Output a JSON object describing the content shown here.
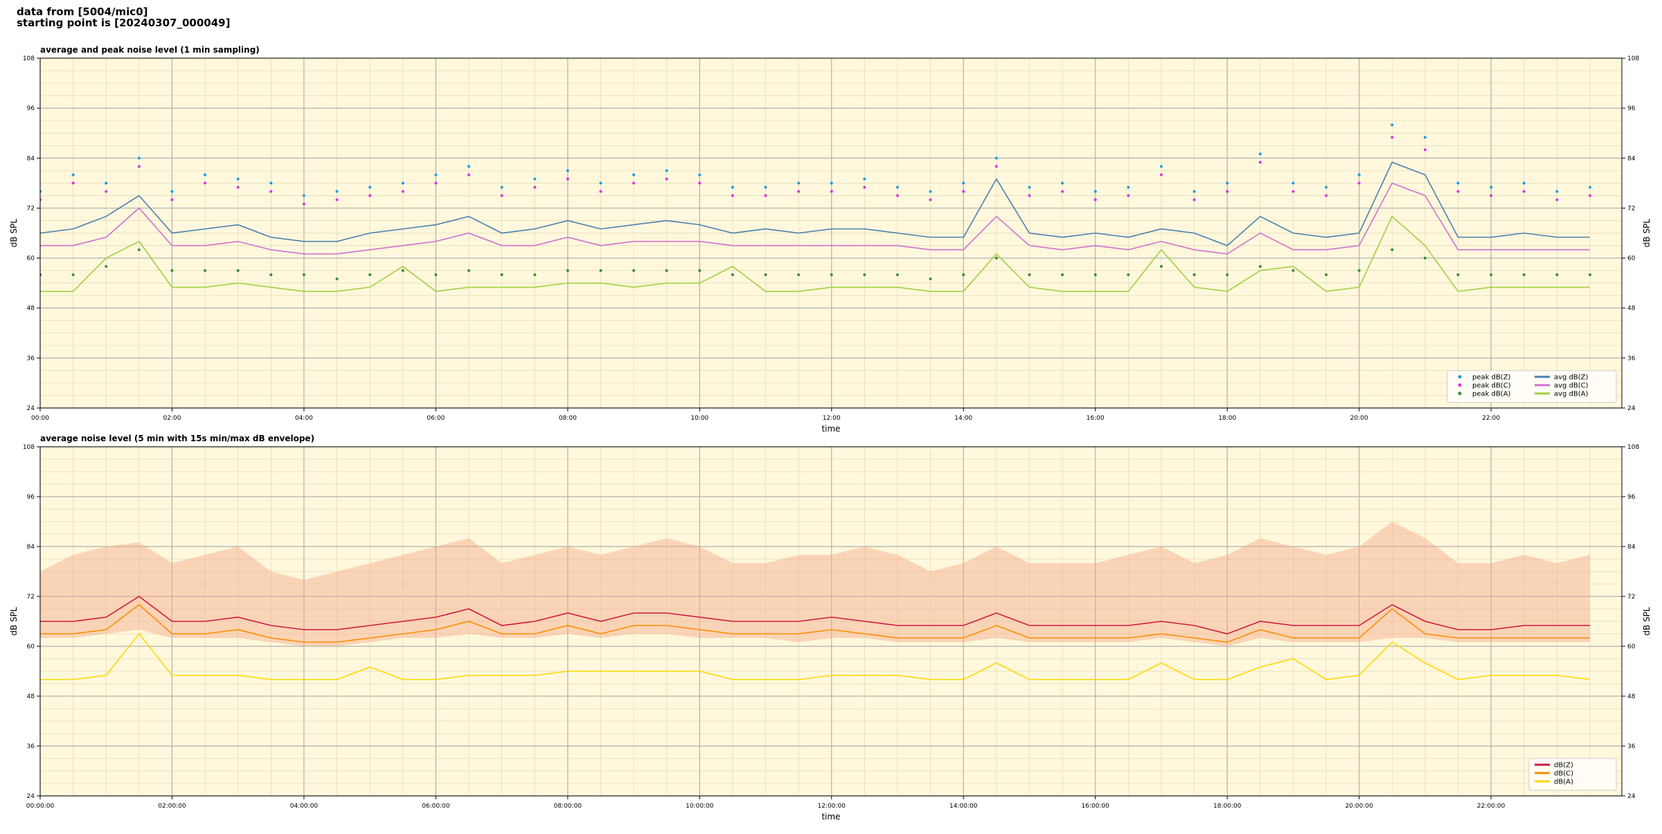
{
  "header": {
    "lines": [
      "data from [5004/mic0]",
      "starting point is [20240307_000049]"
    ]
  },
  "chart_data": [
    {
      "type": "line",
      "title": "average and peak noise level (1 min sampling)",
      "xlabel": "time",
      "ylabel": "dB SPL",
      "y2label": "dB SPL",
      "x": [
        "00:00",
        "00:30",
        "01:00",
        "01:30",
        "02:00",
        "02:30",
        "03:00",
        "03:30",
        "04:00",
        "04:30",
        "05:00",
        "05:30",
        "06:00",
        "06:30",
        "07:00",
        "07:30",
        "08:00",
        "08:30",
        "09:00",
        "09:30",
        "10:00",
        "10:30",
        "11:00",
        "11:30",
        "12:00",
        "12:30",
        "13:00",
        "13:30",
        "14:00",
        "14:30",
        "15:00",
        "15:30",
        "16:00",
        "16:30",
        "17:00",
        "17:30",
        "18:00",
        "18:30",
        "19:00",
        "19:30",
        "20:00",
        "20:30",
        "21:00",
        "21:30",
        "22:00",
        "22:30",
        "23:00",
        "23:30"
      ],
      "xlim": [
        "00:00",
        "23:59"
      ],
      "xticks": [
        "00:00",
        "02:00",
        "04:00",
        "06:00",
        "08:00",
        "10:00",
        "12:00",
        "14:00",
        "16:00",
        "18:00",
        "20:00",
        "22:00"
      ],
      "ylim": [
        24,
        108
      ],
      "yticks": [
        24,
        36,
        48,
        60,
        72,
        84,
        96,
        108
      ],
      "y2lim": [
        24,
        108
      ],
      "y2ticks": [
        24,
        36,
        48,
        60,
        72,
        84,
        96,
        108
      ],
      "grid": true,
      "legend": "lower right",
      "background": "#fff8dc",
      "series": [
        {
          "name": "peak dB(Z)",
          "kind": "scatter",
          "color": "#1f9be0",
          "values": [
            76,
            80,
            78,
            84,
            76,
            80,
            79,
            78,
            75,
            76,
            77,
            78,
            80,
            82,
            77,
            79,
            81,
            78,
            80,
            81,
            80,
            77,
            77,
            78,
            78,
            79,
            77,
            76,
            78,
            84,
            77,
            78,
            76,
            77,
            82,
            76,
            78,
            85,
            78,
            77,
            80,
            92,
            89,
            78,
            77,
            78,
            76,
            77
          ]
        },
        {
          "name": "peak dB(C)",
          "kind": "scatter",
          "color": "#e030e0",
          "values": [
            74,
            78,
            76,
            82,
            74,
            78,
            77,
            76,
            73,
            74,
            75,
            76,
            78,
            80,
            75,
            77,
            79,
            76,
            78,
            79,
            78,
            75,
            75,
            76,
            76,
            77,
            75,
            74,
            76,
            82,
            75,
            76,
            74,
            75,
            80,
            74,
            76,
            83,
            76,
            75,
            78,
            89,
            86,
            76,
            75,
            76,
            74,
            75
          ]
        },
        {
          "name": "peak dB(A)",
          "kind": "scatter",
          "color": "#3a8a3a",
          "values": [
            56,
            56,
            58,
            62,
            57,
            57,
            57,
            56,
            56,
            55,
            56,
            57,
            56,
            57,
            56,
            56,
            57,
            57,
            57,
            57,
            57,
            56,
            56,
            56,
            56,
            56,
            56,
            55,
            56,
            60,
            56,
            56,
            56,
            56,
            58,
            56,
            56,
            58,
            57,
            56,
            57,
            62,
            60,
            56,
            56,
            56,
            56,
            56
          ]
        },
        {
          "name": "avg dB(Z)",
          "kind": "line",
          "color": "#4a7fb0",
          "values": [
            66,
            67,
            70,
            75,
            66,
            67,
            68,
            65,
            64,
            64,
            66,
            67,
            68,
            70,
            66,
            67,
            69,
            67,
            68,
            69,
            68,
            66,
            67,
            66,
            67,
            67,
            66,
            65,
            65,
            79,
            66,
            65,
            66,
            65,
            67,
            66,
            63,
            70,
            66,
            65,
            66,
            83,
            80,
            65,
            65,
            66,
            65,
            65
          ]
        },
        {
          "name": "avg dB(C)",
          "kind": "line",
          "color": "#d070d0",
          "values": [
            63,
            63,
            65,
            72,
            63,
            63,
            64,
            62,
            61,
            61,
            62,
            63,
            64,
            66,
            63,
            63,
            65,
            63,
            64,
            64,
            64,
            63,
            63,
            63,
            63,
            63,
            63,
            62,
            62,
            70,
            63,
            62,
            63,
            62,
            64,
            62,
            61,
            66,
            62,
            62,
            63,
            78,
            75,
            62,
            62,
            62,
            62,
            62
          ]
        },
        {
          "name": "avg dB(A)",
          "kind": "line",
          "color": "#a0d040",
          "values": [
            52,
            52,
            60,
            64,
            53,
            53,
            54,
            53,
            52,
            52,
            53,
            58,
            52,
            53,
            53,
            53,
            54,
            54,
            53,
            54,
            54,
            58,
            52,
            52,
            53,
            53,
            53,
            52,
            52,
            61,
            53,
            52,
            52,
            52,
            62,
            53,
            52,
            57,
            58,
            52,
            53,
            70,
            63,
            52,
            53,
            53,
            53,
            53
          ]
        }
      ]
    },
    {
      "type": "line",
      "title": "average noise level (5 min with 15s min/max dB envelope)",
      "xlabel": "time",
      "ylabel": "dB SPL",
      "y2label": "dB SPL",
      "x": [
        "00:00:00",
        "00:30:00",
        "01:00:00",
        "01:30:00",
        "02:00:00",
        "02:30:00",
        "03:00:00",
        "03:30:00",
        "04:00:00",
        "04:30:00",
        "05:00:00",
        "05:30:00",
        "06:00:00",
        "06:30:00",
        "07:00:00",
        "07:30:00",
        "08:00:00",
        "08:30:00",
        "09:00:00",
        "09:30:00",
        "10:00:00",
        "10:30:00",
        "11:00:00",
        "11:30:00",
        "12:00:00",
        "12:30:00",
        "13:00:00",
        "13:30:00",
        "14:00:00",
        "14:30:00",
        "15:00:00",
        "15:30:00",
        "16:00:00",
        "16:30:00",
        "17:00:00",
        "17:30:00",
        "18:00:00",
        "18:30:00",
        "19:00:00",
        "19:30:00",
        "20:00:00",
        "20:30:00",
        "21:00:00",
        "21:30:00",
        "22:00:00",
        "22:30:00",
        "23:00:00",
        "23:30:00"
      ],
      "xlim": [
        "00:00:00",
        "23:59:00"
      ],
      "xticks": [
        "00:00:00",
        "02:00:00",
        "04:00:00",
        "06:00:00",
        "08:00:00",
        "10:00:00",
        "12:00:00",
        "14:00:00",
        "16:00:00",
        "18:00:00",
        "20:00:00",
        "22:00:00"
      ],
      "ylim": [
        24,
        108
      ],
      "yticks": [
        24,
        36,
        48,
        60,
        72,
        84,
        96,
        108
      ],
      "y2lim": [
        24,
        108
      ],
      "y2ticks": [
        24,
        36,
        48,
        60,
        72,
        84,
        96,
        108
      ],
      "grid": true,
      "legend": "lower right",
      "background": "#fff8dc",
      "envelope": {
        "color": "#f4a888",
        "upper": [
          78,
          82,
          84,
          85,
          80,
          82,
          84,
          78,
          76,
          78,
          80,
          82,
          84,
          86,
          80,
          82,
          84,
          82,
          84,
          86,
          84,
          80,
          80,
          82,
          82,
          84,
          82,
          78,
          80,
          84,
          80,
          80,
          80,
          82,
          84,
          80,
          82,
          86,
          84,
          82,
          84,
          90,
          86,
          80,
          80,
          82,
          80,
          82
        ],
        "lower": [
          62,
          62,
          63,
          64,
          62,
          62,
          62,
          61,
          60,
          60,
          61,
          62,
          62,
          63,
          62,
          62,
          63,
          62,
          63,
          63,
          62,
          62,
          62,
          61,
          62,
          62,
          61,
          61,
          61,
          62,
          61,
          61,
          61,
          61,
          62,
          61,
          60,
          62,
          61,
          61,
          61,
          62,
          62,
          61,
          61,
          61,
          61,
          61
        ]
      },
      "series": [
        {
          "name": "dB(Z)",
          "kind": "line",
          "color": "#d01840",
          "values": [
            66,
            66,
            67,
            72,
            66,
            66,
            67,
            65,
            64,
            64,
            65,
            66,
            67,
            69,
            65,
            66,
            68,
            66,
            68,
            68,
            67,
            66,
            66,
            66,
            67,
            66,
            65,
            65,
            65,
            68,
            65,
            65,
            65,
            65,
            66,
            65,
            63,
            66,
            65,
            65,
            65,
            70,
            66,
            64,
            64,
            65,
            65,
            65
          ]
        },
        {
          "name": "dB(C)",
          "kind": "line",
          "color": "#ff8c00",
          "values": [
            63,
            63,
            64,
            70,
            63,
            63,
            64,
            62,
            61,
            61,
            62,
            63,
            64,
            66,
            63,
            63,
            65,
            63,
            65,
            65,
            64,
            63,
            63,
            63,
            64,
            63,
            62,
            62,
            62,
            65,
            62,
            62,
            62,
            62,
            63,
            62,
            61,
            64,
            62,
            62,
            62,
            69,
            63,
            62,
            62,
            62,
            62,
            62
          ]
        },
        {
          "name": "dB(A)",
          "kind": "line",
          "color": "#ffd700",
          "values": [
            52,
            52,
            53,
            63,
            53,
            53,
            53,
            52,
            52,
            52,
            55,
            52,
            52,
            53,
            53,
            53,
            54,
            54,
            54,
            54,
            54,
            52,
            52,
            52,
            53,
            53,
            53,
            52,
            52,
            56,
            52,
            52,
            52,
            52,
            56,
            52,
            52,
            55,
            57,
            52,
            53,
            61,
            56,
            52,
            53,
            53,
            53,
            52
          ]
        }
      ]
    }
  ]
}
